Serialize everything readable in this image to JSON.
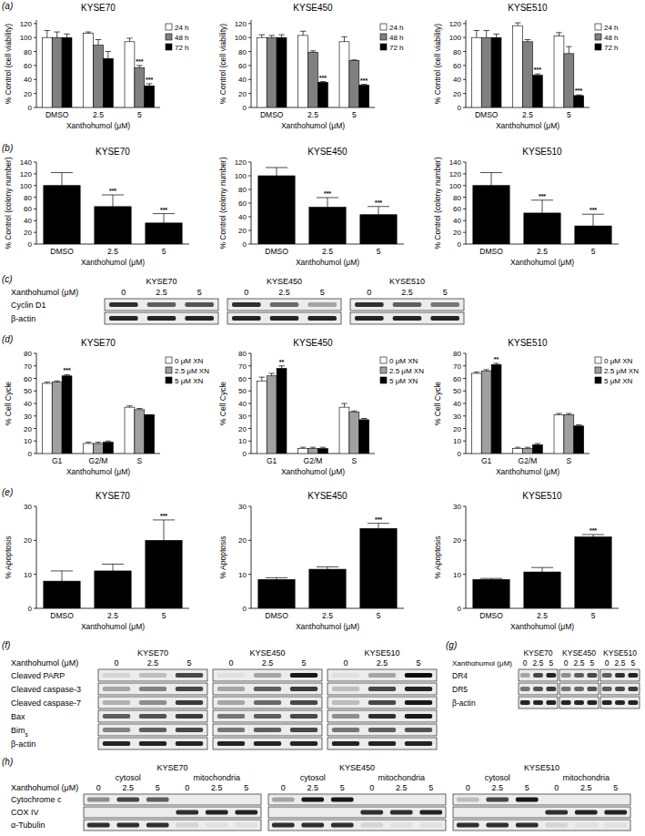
{
  "chart_data": [
    {
      "type": "bar",
      "title": "KYSE70",
      "x_label": "Xanthohumol (μM)",
      "y_label": "% Control (cell viability)",
      "categories": [
        "DMSO",
        "2.5",
        "5"
      ],
      "ylim": [
        0,
        125
      ],
      "yticks": [
        0,
        20,
        40,
        60,
        80,
        100,
        120
      ],
      "legend": "right",
      "series": [
        {
          "name": "24 h",
          "color": "#ffffff",
          "values": [
            100,
            106,
            94
          ],
          "errors": [
            10,
            2,
            5
          ],
          "significance": [
            null,
            null,
            null
          ]
        },
        {
          "name": "48 h",
          "color": "#808080",
          "values": [
            100,
            89,
            57
          ],
          "errors": [
            8,
            8,
            3
          ],
          "significance": [
            null,
            null,
            "***"
          ]
        },
        {
          "name": "72 h",
          "color": "#000000",
          "values": [
            100,
            70,
            31
          ],
          "errors": [
            5,
            10,
            3
          ],
          "significance": [
            null,
            null,
            "***"
          ]
        }
      ]
    },
    {
      "type": "bar",
      "title": "KYSE450",
      "x_label": "Xanthohumol (μM)",
      "y_label": "% Control (cell viability)",
      "categories": [
        "DMSO",
        "2.5",
        "5"
      ],
      "ylim": [
        0,
        125
      ],
      "yticks": [
        0,
        20,
        40,
        60,
        80,
        100,
        120
      ],
      "legend": "right",
      "series": [
        {
          "name": "24 h",
          "color": "#ffffff",
          "values": [
            100,
            103,
            94
          ],
          "errors": [
            4,
            6,
            7
          ],
          "significance": [
            null,
            null,
            null
          ]
        },
        {
          "name": "48 h",
          "color": "#808080",
          "values": [
            100,
            79,
            67
          ],
          "errors": [
            3,
            2,
            1
          ],
          "significance": [
            null,
            null,
            null
          ]
        },
        {
          "name": "72 h",
          "color": "#000000",
          "values": [
            100,
            36,
            32
          ],
          "errors": [
            4,
            1,
            1
          ],
          "significance": [
            null,
            "***",
            "***"
          ]
        }
      ]
    },
    {
      "type": "bar",
      "title": "KYSE510",
      "x_label": "Xanthohumol (μM)",
      "y_label": "% Control (cell viability)",
      "categories": [
        "DMSO",
        "2.5",
        "5"
      ],
      "ylim": [
        0,
        125
      ],
      "yticks": [
        0,
        20,
        40,
        60,
        80,
        100,
        120
      ],
      "legend": "right",
      "series": [
        {
          "name": "24 h",
          "color": "#ffffff",
          "values": [
            100,
            117,
            102
          ],
          "errors": [
            10,
            4,
            5
          ],
          "significance": [
            null,
            null,
            null
          ]
        },
        {
          "name": "48 h",
          "color": "#808080",
          "values": [
            100,
            94,
            77
          ],
          "errors": [
            10,
            3,
            10
          ],
          "significance": [
            null,
            null,
            null
          ]
        },
        {
          "name": "72 h",
          "color": "#000000",
          "values": [
            100,
            46,
            17
          ],
          "errors": [
            5,
            2,
            1
          ],
          "significance": [
            null,
            "***",
            "***"
          ]
        }
      ]
    },
    {
      "type": "bar",
      "title": "KYSE70",
      "x_label": "Xanthohumol (μM)",
      "y_label": "% Control (colony number)",
      "categories": [
        "DMSO",
        "2.5",
        "5"
      ],
      "ylim": [
        0,
        140
      ],
      "yticks": [
        0,
        20,
        40,
        60,
        80,
        100,
        120,
        140
      ],
      "color": "#000000",
      "values": [
        100,
        64,
        36
      ],
      "errors": [
        22,
        20,
        16
      ],
      "significance": [
        null,
        "***",
        "***"
      ]
    },
    {
      "type": "bar",
      "title": "KYSE450",
      "x_label": "Xanthohumol (μM)",
      "y_label": "% Control (colony number)",
      "categories": [
        "DMSO",
        "2.5",
        "5"
      ],
      "ylim": [
        0,
        120
      ],
      "yticks": [
        0,
        20,
        40,
        60,
        80,
        100,
        120
      ],
      "color": "#000000",
      "values": [
        100,
        54,
        43
      ],
      "errors": [
        12,
        14,
        12
      ],
      "significance": [
        null,
        "***",
        "***"
      ]
    },
    {
      "type": "bar",
      "title": "KYSE510",
      "x_label": "Xanthohumol (μM)",
      "y_label": "% Control (colony number)",
      "categories": [
        "DMSO",
        "2.5",
        "5"
      ],
      "ylim": [
        0,
        140
      ],
      "yticks": [
        0,
        20,
        40,
        60,
        80,
        100,
        120,
        140
      ],
      "color": "#000000",
      "values": [
        100,
        53,
        31
      ],
      "errors": [
        22,
        22,
        20
      ],
      "significance": [
        null,
        "***",
        "***"
      ]
    },
    {
      "type": "bar",
      "title": "KYSE70",
      "x_label": "Xanthohumol (μM)",
      "y_label": "% Cell Cycle",
      "categories": [
        "G1",
        "G2/M",
        "S"
      ],
      "ylim": [
        0,
        80
      ],
      "yticks": [
        0,
        10,
        20,
        30,
        40,
        50,
        60,
        70,
        80
      ],
      "legend": "right",
      "series": [
        {
          "name": "0 μM XN",
          "color": "#ffffff",
          "values": [
            56,
            8,
            37
          ],
          "errors": [
            1,
            1,
            1
          ],
          "significance": [
            null,
            null,
            null
          ]
        },
        {
          "name": "2.5 μM XN",
          "color": "#a0a0a0",
          "values": [
            57,
            8,
            35
          ],
          "errors": [
            1,
            1,
            1
          ],
          "significance": [
            null,
            null,
            null
          ]
        },
        {
          "name": "5 μM XN",
          "color": "#000000",
          "values": [
            62,
            9,
            31
          ],
          "errors": [
            1,
            1,
            0
          ],
          "significance": [
            "***",
            null,
            null
          ]
        }
      ]
    },
    {
      "type": "bar",
      "title": "KYSE450",
      "x_label": "Xanthohumol (μM)",
      "y_label": "% Cell Cycle",
      "categories": [
        "G1",
        "G2/M",
        "S"
      ],
      "ylim": [
        0,
        80
      ],
      "yticks": [
        0,
        10,
        20,
        30,
        40,
        50,
        60,
        70,
        80
      ],
      "legend": "right",
      "series": [
        {
          "name": "0 μM XN",
          "color": "#ffffff",
          "values": [
            58,
            4,
            37
          ],
          "errors": [
            3,
            1,
            3
          ],
          "significance": [
            null,
            null,
            null
          ]
        },
        {
          "name": "2.5 μM XN",
          "color": "#a0a0a0",
          "values": [
            62,
            4,
            33
          ],
          "errors": [
            2,
            1,
            1
          ],
          "significance": [
            null,
            null,
            null
          ]
        },
        {
          "name": "5 μM XN",
          "color": "#000000",
          "values": [
            68,
            4,
            27
          ],
          "errors": [
            2,
            1,
            1
          ],
          "significance": [
            "**",
            null,
            null
          ]
        }
      ]
    },
    {
      "type": "bar",
      "title": "KYSE510",
      "x_label": "Xanthohumol (μM)",
      "y_label": "% Cell Cycle",
      "categories": [
        "G1",
        "G2/M",
        "S"
      ],
      "ylim": [
        0,
        80
      ],
      "yticks": [
        0,
        10,
        20,
        30,
        40,
        50,
        60,
        70,
        80
      ],
      "legend": "right",
      "series": [
        {
          "name": "0 μM XN",
          "color": "#ffffff",
          "values": [
            64,
            4,
            31
          ],
          "errors": [
            1,
            1,
            1
          ],
          "significance": [
            null,
            null,
            null
          ]
        },
        {
          "name": "2.5 μM XN",
          "color": "#a0a0a0",
          "values": [
            66,
            4,
            31
          ],
          "errors": [
            1,
            1,
            1
          ],
          "significance": [
            null,
            null,
            null
          ]
        },
        {
          "name": "5 μM XN",
          "color": "#000000",
          "values": [
            71,
            7,
            22
          ],
          "errors": [
            1,
            1,
            1
          ],
          "significance": [
            "**",
            null,
            null
          ]
        }
      ]
    },
    {
      "type": "bar",
      "title": "KYSE70",
      "x_label": "Xanthohumol (μM)",
      "y_label": "% Apoptosis",
      "categories": [
        "DMSO",
        "2.5",
        "5"
      ],
      "ylim": [
        0,
        30
      ],
      "yticks": [
        0,
        10,
        20,
        30
      ],
      "color": "#000000",
      "values": [
        8,
        11,
        20
      ],
      "errors": [
        3,
        2,
        6
      ],
      "significance": [
        null,
        null,
        "***"
      ]
    },
    {
      "type": "bar",
      "title": "KYSE450",
      "x_label": "Xanthohumol (μM)",
      "y_label": "% Apoptosis",
      "categories": [
        "DMSO",
        "2.5",
        "5"
      ],
      "ylim": [
        0,
        30
      ],
      "yticks": [
        0,
        10,
        20,
        30
      ],
      "color": "#000000",
      "values": [
        8.5,
        11.5,
        23.5
      ],
      "errors": [
        0.5,
        0.7,
        1.5
      ],
      "significance": [
        null,
        null,
        "***"
      ]
    },
    {
      "type": "bar",
      "title": "KYSE510",
      "x_label": "Xanthohumol (μM)",
      "y_label": "% Apoptosis",
      "categories": [
        "DMSO",
        "2.5",
        "5"
      ],
      "ylim": [
        0,
        30
      ],
      "yticks": [
        0,
        10,
        20,
        30
      ],
      "color": "#000000",
      "values": [
        8.5,
        10.7,
        21
      ],
      "errors": [
        0.3,
        1.3,
        0.7
      ],
      "significance": [
        null,
        null,
        "***"
      ]
    }
  ],
  "panel_labels": [
    "(a)",
    "(b)",
    "(c)",
    "(d)",
    "(e)",
    "(f)",
    "(g)",
    "(h)"
  ],
  "blots": {
    "c": {
      "header": "Xanthohumol (μM)",
      "groups": [
        "KYSE70",
        "KYSE450",
        "KYSE510"
      ],
      "lanes": [
        0,
        2.5,
        5
      ],
      "rows": [
        {
          "name": "Cyclin D1",
          "intensity": [
            [
              0.8,
              0.6,
              0.65
            ],
            [
              0.8,
              0.55,
              0.3
            ],
            [
              0.8,
              0.6,
              0.5
            ]
          ]
        },
        {
          "name": "β-actin",
          "intensity": [
            [
              0.85,
              0.85,
              0.85
            ],
            [
              0.85,
              0.85,
              0.85
            ],
            [
              0.85,
              0.85,
              0.85
            ]
          ]
        }
      ]
    },
    "f": {
      "header": "Xanthohumol (μM)",
      "groups": [
        "KYSE70",
        "KYSE450",
        "KYSE510"
      ],
      "lanes": [
        0,
        2.5,
        5
      ],
      "rows": [
        {
          "name": "Cleaved PARP",
          "intensity": [
            [
              0.1,
              0.2,
              0.7
            ],
            [
              0.05,
              0.3,
              0.9
            ],
            [
              0.05,
              0.3,
              0.95
            ]
          ]
        },
        {
          "name": "Cleaved caspase-3",
          "intensity": [
            [
              0.3,
              0.45,
              0.7
            ],
            [
              0.3,
              0.6,
              0.75
            ],
            [
              0.2,
              0.7,
              0.85
            ]
          ]
        },
        {
          "name": "Cleaved caspase-7",
          "intensity": [
            [
              0.25,
              0.4,
              0.75
            ],
            [
              0.3,
              0.55,
              0.7
            ],
            [
              0.2,
              0.7,
              0.9
            ]
          ]
        },
        {
          "name": "Bax",
          "intensity": [
            [
              0.6,
              0.65,
              0.75
            ],
            [
              0.5,
              0.6,
              0.7
            ],
            [
              0.4,
              0.8,
              0.9
            ]
          ]
        },
        {
          "name": "Bim",
          "subscript": "s",
          "intensity": [
            [
              0.45,
              0.6,
              0.7
            ],
            [
              0.5,
              0.6,
              0.7
            ],
            [
              0.5,
              0.6,
              0.65
            ]
          ]
        },
        {
          "name": "β-actin",
          "intensity": [
            [
              0.85,
              0.85,
              0.85
            ],
            [
              0.85,
              0.85,
              0.85
            ],
            [
              0.85,
              0.85,
              0.85
            ]
          ]
        }
      ]
    },
    "g": {
      "header": "Xanthohumol (μM)",
      "groups": [
        "KYSE70",
        "KYSE450",
        "KYSE510"
      ],
      "lanes": [
        0,
        2.5,
        5
      ],
      "rows": [
        {
          "name": "DR4",
          "intensity": [
            [
              0.3,
              0.7,
              0.85
            ],
            [
              0.4,
              0.6,
              0.7
            ],
            [
              0.6,
              0.8,
              0.85
            ]
          ]
        },
        {
          "name": "DR5",
          "intensity": [
            [
              0.5,
              0.65,
              0.75
            ],
            [
              0.5,
              0.55,
              0.65
            ],
            [
              0.6,
              0.7,
              0.75
            ]
          ]
        },
        {
          "name": "β-actin",
          "intensity": [
            [
              0.85,
              0.85,
              0.85
            ],
            [
              0.85,
              0.85,
              0.85
            ],
            [
              0.85,
              0.85,
              0.85
            ]
          ]
        }
      ]
    },
    "h": {
      "header": "Xanthohumol (μM)",
      "groups": [
        "KYSE70",
        "KYSE450",
        "KYSE510"
      ],
      "fractions": [
        "cytosol",
        "mitochondria"
      ],
      "lanes": [
        0,
        2.5,
        5,
        0,
        2.5,
        5
      ],
      "rows": [
        {
          "name": "Cytochrome c",
          "intensity": [
            [
              0.4,
              0.7,
              0.6,
              0,
              0,
              0
            ],
            [
              0.3,
              0.9,
              0.9,
              0,
              0,
              0
            ],
            [
              0.2,
              0.7,
              0.9,
              0,
              0,
              0
            ]
          ]
        },
        {
          "name": "COX IV",
          "intensity": [
            [
              0,
              0,
              0,
              0.8,
              0.85,
              0.85
            ],
            [
              0,
              0,
              0,
              0.8,
              0.8,
              0.85
            ],
            [
              0,
              0,
              0,
              0.8,
              0.85,
              0.85
            ]
          ]
        },
        {
          "name": "α-Tubulin",
          "intensity": [
            [
              0.8,
              0.8,
              0.8,
              0.1,
              0.05,
              0.05
            ],
            [
              0.8,
              0.8,
              0.8,
              0.1,
              0.05,
              0.05
            ],
            [
              0.8,
              0.8,
              0.8,
              0.1,
              0.05,
              0.05
            ]
          ]
        }
      ]
    }
  }
}
